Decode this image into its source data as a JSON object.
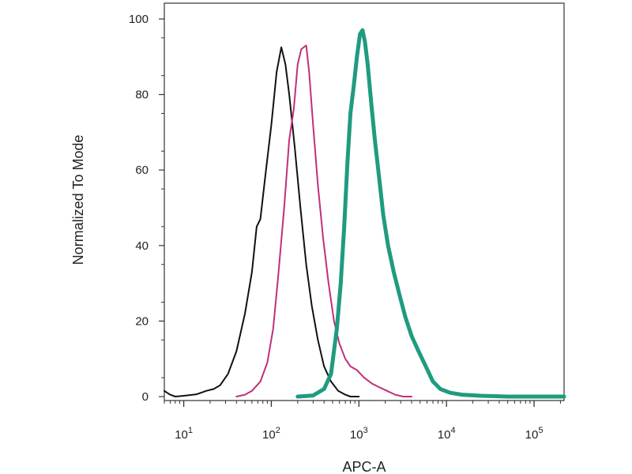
{
  "chart_data": {
    "type": "line",
    "title": "",
    "xlabel": "APC-A",
    "ylabel": "Normalized To Mode",
    "x_scale": "log",
    "xlim": [
      6,
      220000
    ],
    "ylim": [
      0,
      100
    ],
    "grid": false,
    "legend": "none",
    "y_ticks": [
      {
        "value": 0,
        "label": "0"
      },
      {
        "value": 20,
        "label": "20"
      },
      {
        "value": 40,
        "label": "40"
      },
      {
        "value": 60,
        "label": "60"
      },
      {
        "value": 80,
        "label": "80"
      },
      {
        "value": 100,
        "label": "100"
      }
    ],
    "x_ticks": [
      {
        "value": 10,
        "base": "10",
        "exp": "1"
      },
      {
        "value": 100,
        "base": "10",
        "exp": "2"
      },
      {
        "value": 1000,
        "base": "10",
        "exp": "3"
      },
      {
        "value": 10000,
        "base": "10",
        "exp": "4"
      },
      {
        "value": 100000,
        "base": "10",
        "exp": "5"
      }
    ],
    "series": [
      {
        "color": "#111111",
        "stroke_width": 2,
        "points": [
          [
            6,
            1.5
          ],
          [
            7,
            0.5
          ],
          [
            8,
            0
          ],
          [
            10,
            0.2
          ],
          [
            14,
            0.6
          ],
          [
            18,
            1.5
          ],
          [
            22,
            2
          ],
          [
            26,
            3
          ],
          [
            32,
            6
          ],
          [
            40,
            12
          ],
          [
            50,
            22
          ],
          [
            60,
            33
          ],
          [
            68,
            45
          ],
          [
            75,
            47
          ],
          [
            85,
            58
          ],
          [
            100,
            72
          ],
          [
            115,
            86
          ],
          [
            130,
            92.5
          ],
          [
            145,
            88
          ],
          [
            160,
            80
          ],
          [
            185,
            66
          ],
          [
            215,
            50
          ],
          [
            250,
            35
          ],
          [
            290,
            24
          ],
          [
            340,
            15
          ],
          [
            400,
            8
          ],
          [
            480,
            4
          ],
          [
            580,
            1.5
          ],
          [
            700,
            0.5
          ],
          [
            800,
            0
          ],
          [
            1000,
            0
          ]
        ]
      },
      {
        "color": "#c0307a",
        "stroke_width": 2,
        "points": [
          [
            40,
            0
          ],
          [
            50,
            0.5
          ],
          [
            60,
            1.5
          ],
          [
            75,
            4
          ],
          [
            90,
            9
          ],
          [
            105,
            18
          ],
          [
            120,
            32
          ],
          [
            140,
            50
          ],
          [
            160,
            68
          ],
          [
            180,
            76
          ],
          [
            200,
            88
          ],
          [
            220,
            92
          ],
          [
            250,
            93
          ],
          [
            270,
            86
          ],
          [
            300,
            72
          ],
          [
            340,
            56
          ],
          [
            390,
            42
          ],
          [
            450,
            30
          ],
          [
            520,
            20
          ],
          [
            600,
            14
          ],
          [
            700,
            10
          ],
          [
            800,
            8
          ],
          [
            950,
            7
          ],
          [
            1150,
            5
          ],
          [
            1400,
            3.5
          ],
          [
            1700,
            2.5
          ],
          [
            2100,
            1.5
          ],
          [
            2600,
            0.5
          ],
          [
            3200,
            0
          ],
          [
            4000,
            0
          ]
        ]
      },
      {
        "color": "#1f9b80",
        "stroke_width": 5,
        "points": [
          [
            200,
            0
          ],
          [
            300,
            0.3
          ],
          [
            400,
            2
          ],
          [
            480,
            6
          ],
          [
            560,
            18
          ],
          [
            620,
            30
          ],
          [
            680,
            45
          ],
          [
            740,
            62
          ],
          [
            800,
            75
          ],
          [
            880,
            83
          ],
          [
            950,
            90
          ],
          [
            1030,
            96
          ],
          [
            1100,
            97
          ],
          [
            1170,
            94
          ],
          [
            1260,
            88
          ],
          [
            1380,
            78
          ],
          [
            1520,
            68
          ],
          [
            1700,
            58
          ],
          [
            1900,
            48
          ],
          [
            2150,
            40
          ],
          [
            2500,
            33
          ],
          [
            2900,
            27
          ],
          [
            3400,
            21
          ],
          [
            4000,
            16
          ],
          [
            4800,
            12
          ],
          [
            5800,
            8
          ],
          [
            7000,
            4
          ],
          [
            8500,
            2
          ],
          [
            11000,
            1
          ],
          [
            15000,
            0.5
          ],
          [
            25000,
            0.2
          ],
          [
            50000,
            0
          ],
          [
            120000,
            0
          ],
          [
            220000,
            0
          ]
        ]
      }
    ]
  }
}
